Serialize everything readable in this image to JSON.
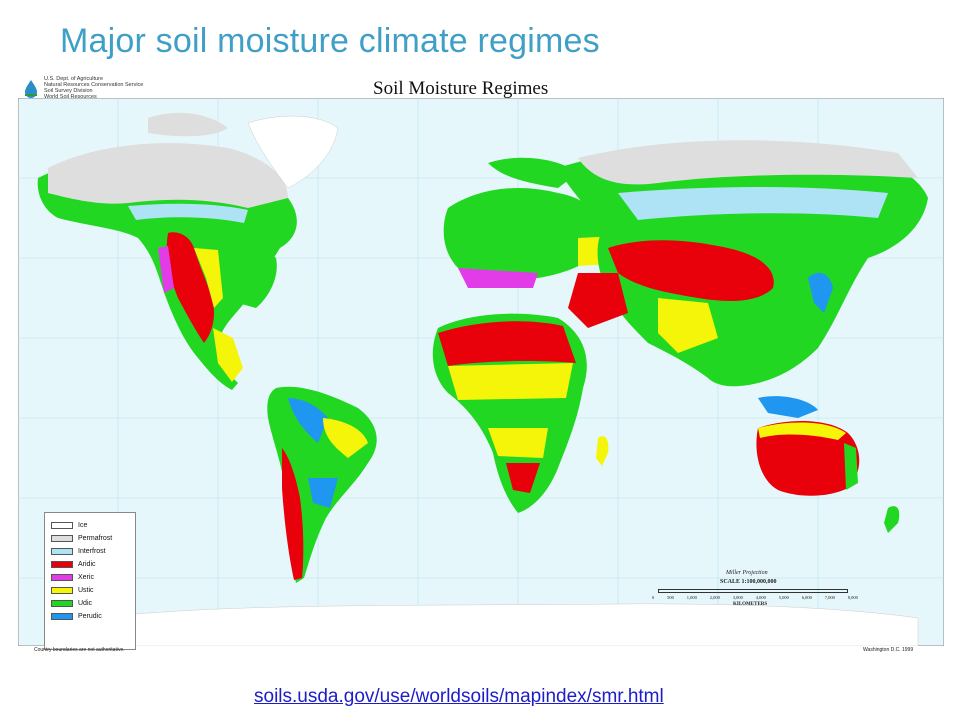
{
  "slide": {
    "title": "Major soil moisture climate regimes",
    "source_link": "soils.usda.gov/use/worldsoils/mapindex/smr.html"
  },
  "map": {
    "title": "Soil Moisture Regimes",
    "agency_lines": [
      "U.S. Dept. of Agriculture",
      "Natural Resources Conservation Service",
      "Soil Survey Division",
      "World Soil Resources"
    ],
    "projection": "Miller Projection",
    "scale": "SCALE 1:100,000,000",
    "scale_ticks": [
      "0",
      "500",
      "1,000",
      "2,000",
      "3,000",
      "4,000",
      "5,000",
      "6,000",
      "7,000",
      "8,000"
    ],
    "scale_unit": "KILOMETERS",
    "disclaimer": "Country boundaries are not authoritative.",
    "date_note": "Washington D.C. 1999",
    "ocean_color": "#e6f7fb",
    "legend": [
      {
        "label": "Ice",
        "color": "#ffffff"
      },
      {
        "label": "Permafrost",
        "color": "#dedede"
      },
      {
        "label": "Interfrost",
        "color": "#aee3f5"
      },
      {
        "label": "Aridic",
        "color": "#e8000a"
      },
      {
        "label": "Xeric",
        "color": "#e23ce8"
      },
      {
        "label": "Ustic",
        "color": "#f5f50a"
      },
      {
        "label": "Udic",
        "color": "#22d722"
      },
      {
        "label": "Perudic",
        "color": "#1f96f0"
      }
    ]
  }
}
